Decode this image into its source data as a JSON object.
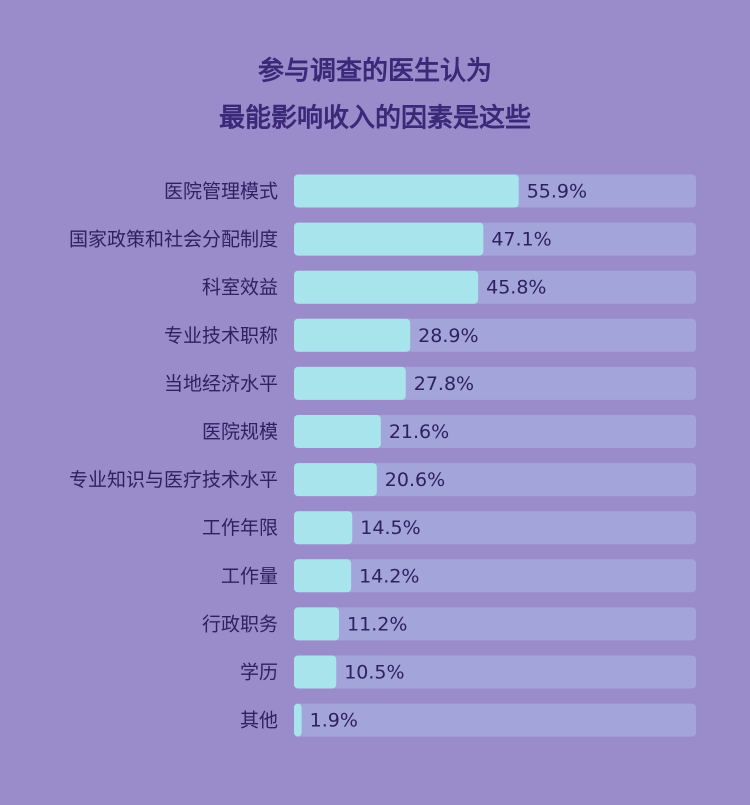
{
  "chart_data": {
    "type": "hbar",
    "title": [
      "参与调查的医生认为",
      "最能影响收入的因素是这些"
    ],
    "categories": [
      "医院管理模式",
      "国家政策和社会分配制度",
      "科室效益",
      "专业技术职称",
      "当地经济水平",
      "医院规模",
      "专业知识与医疗技术水平",
      "工作年限",
      "工作量",
      "行政职务",
      "学历",
      "其他"
    ],
    "values": [
      55.9,
      47.1,
      45.8,
      28.9,
      27.8,
      21.6,
      20.6,
      14.5,
      14.2,
      11.2,
      10.5,
      1.9
    ],
    "value_labels": [
      "55.9%",
      "47.1%",
      "45.8%",
      "28.9%",
      "27.8%",
      "21.6%",
      "20.6%",
      "14.5%",
      "14.2%",
      "11.2%",
      "10.5%",
      "1.9%"
    ],
    "color": "#a8e4ec",
    "xlim": [
      0,
      100
    ]
  }
}
